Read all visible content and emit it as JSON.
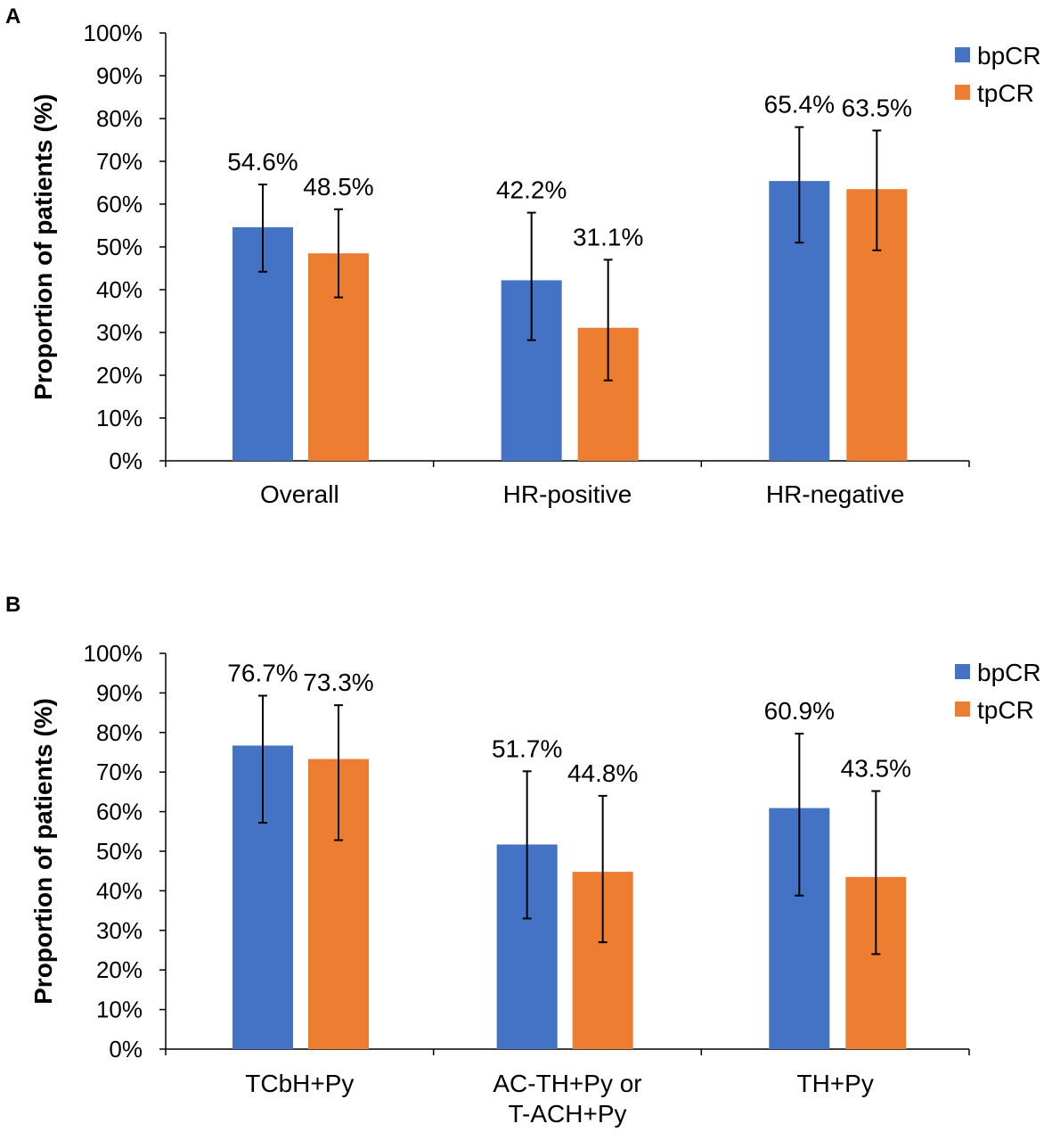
{
  "chart_data": [
    {
      "panel": "A",
      "type": "bar",
      "ylabel": "Proportion of patients (%)",
      "ylim": [
        0,
        100
      ],
      "ytick_labels": [
        "0%",
        "10%",
        "20%",
        "30%",
        "40%",
        "50%",
        "60%",
        "70%",
        "80%",
        "90%",
        "100%"
      ],
      "legend_position": "top-right",
      "categories": [
        {
          "label": [
            "Overall"
          ]
        },
        {
          "label": [
            "HR-positive"
          ]
        },
        {
          "label": [
            "HR-negative"
          ]
        }
      ],
      "series": [
        {
          "name": "bpCR",
          "color": "#4472C4",
          "values": [
            54.6,
            42.2,
            65.4
          ],
          "labels": [
            "54.6%",
            "42.2%",
            "65.4%"
          ],
          "err_low": [
            44.2,
            28.2,
            51.0
          ],
          "err_high": [
            64.6,
            58.0,
            78.0
          ]
        },
        {
          "name": "tpCR",
          "color": "#ED7D31",
          "values": [
            48.5,
            31.1,
            63.5
          ],
          "labels": [
            "48.5%",
            "31.1%",
            "63.5%"
          ],
          "err_low": [
            38.2,
            18.8,
            49.2
          ],
          "err_high": [
            58.8,
            47.0,
            77.2
          ]
        }
      ]
    },
    {
      "panel": "B",
      "type": "bar",
      "ylabel": "Proportion of patients (%)",
      "ylim": [
        0,
        100
      ],
      "ytick_labels": [
        "0%",
        "10%",
        "20%",
        "30%",
        "40%",
        "50%",
        "60%",
        "70%",
        "80%",
        "90%",
        "100%"
      ],
      "legend_position": "top-right",
      "categories": [
        {
          "label": [
            "TCbH+Py"
          ]
        },
        {
          "label": [
            "AC-TH+Py or",
            "T-ACH+Py"
          ]
        },
        {
          "label": [
            "TH+Py"
          ]
        }
      ],
      "series": [
        {
          "name": "bpCR",
          "color": "#4472C4",
          "values": [
            76.7,
            51.7,
            60.9
          ],
          "labels": [
            "76.7%",
            "51.7%",
            "60.9%"
          ],
          "err_low": [
            57.2,
            33.0,
            38.8
          ],
          "err_high": [
            89.3,
            70.2,
            79.7
          ]
        },
        {
          "name": "tpCR",
          "color": "#ED7D31",
          "values": [
            73.3,
            44.8,
            43.5
          ],
          "labels": [
            "73.3%",
            "44.8%",
            "43.5%"
          ],
          "err_low": [
            52.8,
            27.0,
            24.0
          ],
          "err_high": [
            86.9,
            64.0,
            65.2
          ]
        }
      ]
    }
  ]
}
